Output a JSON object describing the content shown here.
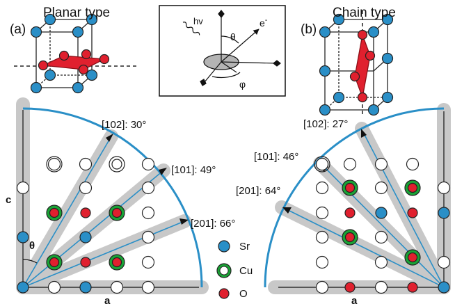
{
  "panel_a": {
    "label": "(a)",
    "title": "Planar type",
    "directions": [
      "[102]: 30°",
      "[101]: 49°",
      "[201]: 66°"
    ],
    "axis_c": "c",
    "axis_a": "a",
    "angle_symbol": "θ"
  },
  "panel_b": {
    "label": "(b)",
    "title": "Chain type",
    "directions": [
      "[102]: 27°",
      "[101]: 46°",
      "[201]: 64°"
    ],
    "axis_a": "a"
  },
  "geometry": {
    "photon": "hv",
    "electron": "e",
    "electron_sup": "-",
    "theta": "θ",
    "phi": "φ"
  },
  "legend": [
    {
      "label": "Sr",
      "color": "#2a8fc7",
      "ring": false
    },
    {
      "label": "Cu",
      "color": "#1aa336",
      "ring": true
    },
    {
      "label": "O",
      "color": "#e0202e",
      "ring": false
    }
  ],
  "colors": {
    "sr": "#2a8fc7",
    "cu": "#1aa336",
    "o": "#e0202e",
    "arc": "#2a8fc7",
    "band": "#c8c8c8",
    "plaquette": "#e0202e"
  }
}
